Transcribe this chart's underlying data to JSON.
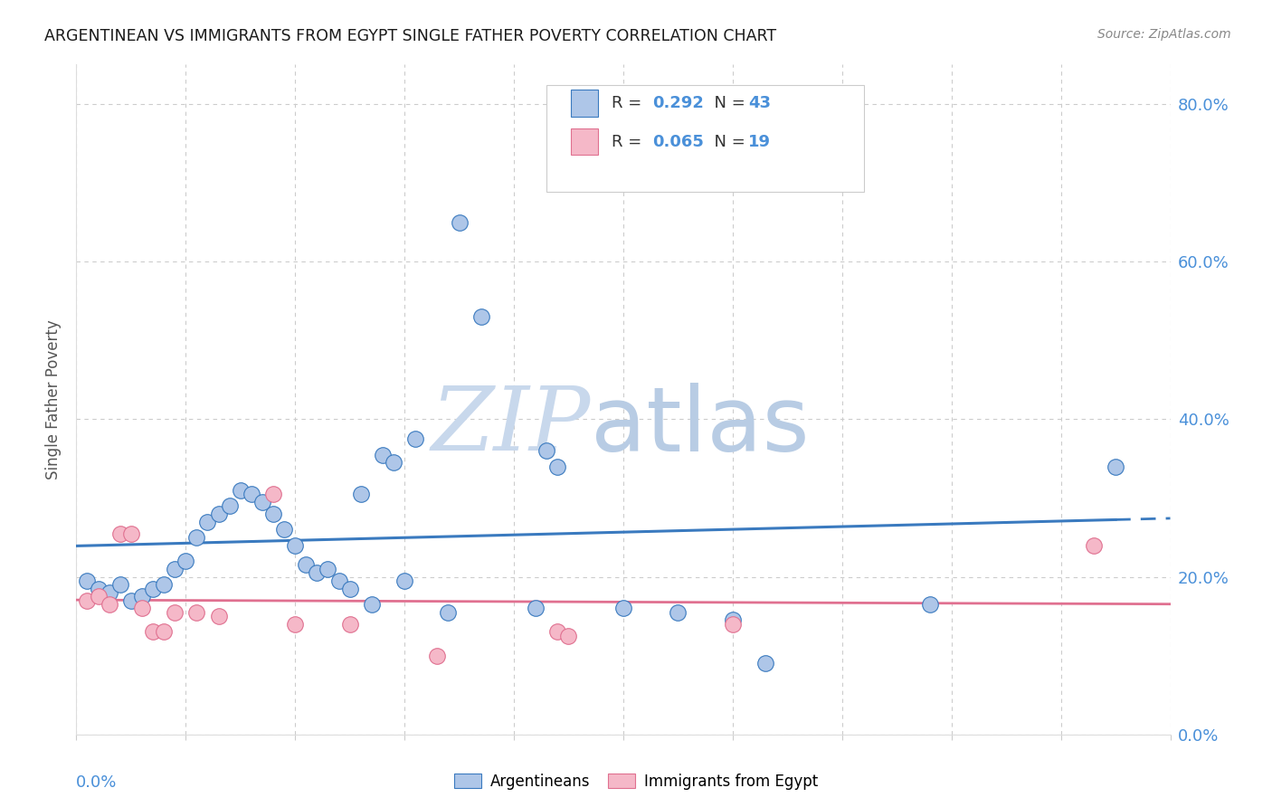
{
  "title": "ARGENTINEAN VS IMMIGRANTS FROM EGYPT SINGLE FATHER POVERTY CORRELATION CHART",
  "source": "Source: ZipAtlas.com",
  "ylabel": "Single Father Poverty",
  "legend_blue_r": "R = 0.292",
  "legend_blue_n": "N = 43",
  "legend_pink_r": "R = 0.065",
  "legend_pink_n": "N = 19",
  "legend_label1": "Argentineans",
  "legend_label2": "Immigrants from Egypt",
  "blue_fill": "#aec6e8",
  "pink_fill": "#f5b8c8",
  "line_blue": "#3a7abf",
  "line_pink": "#e07090",
  "tick_color": "#4a90d9",
  "blue_scatter": [
    [
      0.001,
      0.195
    ],
    [
      0.002,
      0.185
    ],
    [
      0.003,
      0.18
    ],
    [
      0.004,
      0.19
    ],
    [
      0.005,
      0.17
    ],
    [
      0.006,
      0.175
    ],
    [
      0.007,
      0.185
    ],
    [
      0.008,
      0.19
    ],
    [
      0.009,
      0.21
    ],
    [
      0.01,
      0.22
    ],
    [
      0.011,
      0.25
    ],
    [
      0.012,
      0.27
    ],
    [
      0.013,
      0.28
    ],
    [
      0.014,
      0.29
    ],
    [
      0.015,
      0.31
    ],
    [
      0.016,
      0.305
    ],
    [
      0.017,
      0.295
    ],
    [
      0.018,
      0.28
    ],
    [
      0.019,
      0.26
    ],
    [
      0.02,
      0.24
    ],
    [
      0.021,
      0.215
    ],
    [
      0.022,
      0.205
    ],
    [
      0.023,
      0.21
    ],
    [
      0.024,
      0.195
    ],
    [
      0.025,
      0.185
    ],
    [
      0.026,
      0.305
    ],
    [
      0.027,
      0.165
    ],
    [
      0.028,
      0.355
    ],
    [
      0.029,
      0.345
    ],
    [
      0.03,
      0.195
    ],
    [
      0.031,
      0.375
    ],
    [
      0.034,
      0.155
    ],
    [
      0.035,
      0.65
    ],
    [
      0.037,
      0.53
    ],
    [
      0.042,
      0.16
    ],
    [
      0.043,
      0.36
    ],
    [
      0.044,
      0.34
    ],
    [
      0.05,
      0.16
    ],
    [
      0.055,
      0.155
    ],
    [
      0.06,
      0.145
    ],
    [
      0.063,
      0.09
    ],
    [
      0.078,
      0.165
    ],
    [
      0.095,
      0.34
    ]
  ],
  "pink_scatter": [
    [
      0.001,
      0.17
    ],
    [
      0.002,
      0.175
    ],
    [
      0.003,
      0.165
    ],
    [
      0.004,
      0.255
    ],
    [
      0.005,
      0.255
    ],
    [
      0.006,
      0.16
    ],
    [
      0.007,
      0.13
    ],
    [
      0.008,
      0.13
    ],
    [
      0.009,
      0.155
    ],
    [
      0.011,
      0.155
    ],
    [
      0.013,
      0.15
    ],
    [
      0.018,
      0.305
    ],
    [
      0.02,
      0.14
    ],
    [
      0.025,
      0.14
    ],
    [
      0.033,
      0.1
    ],
    [
      0.044,
      0.13
    ],
    [
      0.045,
      0.125
    ],
    [
      0.06,
      0.14
    ],
    [
      0.093,
      0.24
    ]
  ],
  "xmin": 0.0,
  "xmax": 0.1,
  "ymin": 0.0,
  "ymax": 0.85,
  "watermark_zip": "ZIP",
  "watermark_atlas": "atlas",
  "watermark_color_zip": "#c8d8ec",
  "watermark_color_atlas": "#b8cce4"
}
